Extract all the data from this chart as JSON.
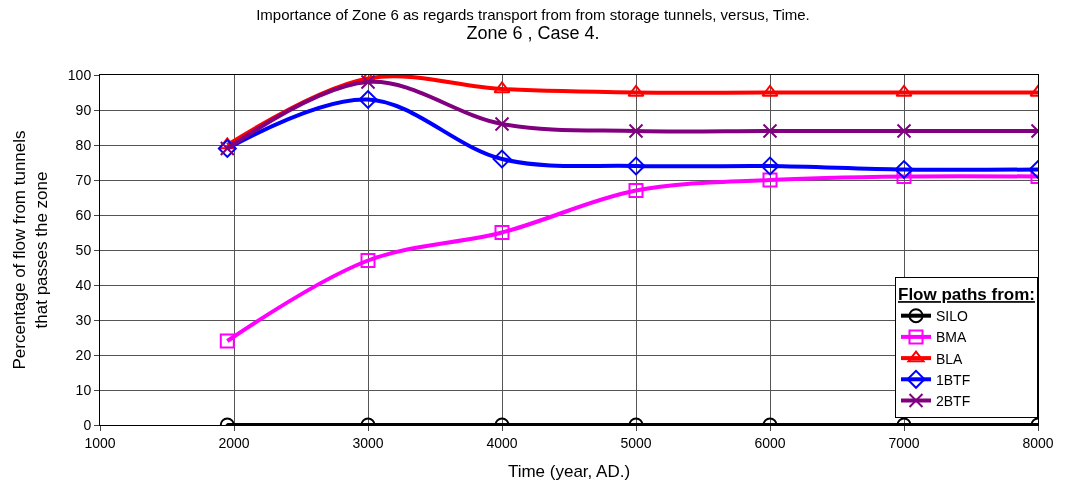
{
  "chart_data": {
    "type": "line",
    "title": "Importance of Zone 6 as regards transport from from storage tunnels, versus, Time.",
    "subtitle": "Zone 6 , Case 4.",
    "xlabel": "Time (year, AD.)",
    "ylabel": "Percentage of flow from tunnels that passes the zone",
    "legend_title": "Flow paths from:",
    "x": [
      1950,
      3000,
      4000,
      5000,
      6000,
      7000,
      8000
    ],
    "series": [
      {
        "name": "SILO",
        "color": "#000000",
        "marker": "circle",
        "values": [
          0,
          0,
          0,
          0,
          0,
          0,
          0
        ]
      },
      {
        "name": "BMA",
        "color": "#ff00ff",
        "marker": "square",
        "values": [
          24,
          47,
          55,
          67,
          70,
          71,
          71
        ]
      },
      {
        "name": "BLA",
        "color": "#ff0000",
        "marker": "triangle",
        "values": [
          80,
          99,
          96,
          95,
          95,
          95,
          95
        ]
      },
      {
        "name": "1BTF",
        "color": "#0000ff",
        "marker": "diamond",
        "values": [
          79,
          93,
          76,
          74,
          74,
          73,
          73
        ]
      },
      {
        "name": "2BTF",
        "color": "#800080",
        "marker": "cross",
        "values": [
          79,
          98,
          86,
          84,
          84,
          84,
          84
        ]
      }
    ],
    "xlim": [
      1000,
      8000
    ],
    "xticks": [
      1000,
      2000,
      3000,
      4000,
      5000,
      6000,
      7000,
      8000
    ],
    "ylim": [
      0,
      100
    ],
    "yticks": [
      0,
      10,
      20,
      30,
      40,
      50,
      60,
      70,
      80,
      90,
      100
    ],
    "grid": true,
    "legend": "bottom right"
  }
}
